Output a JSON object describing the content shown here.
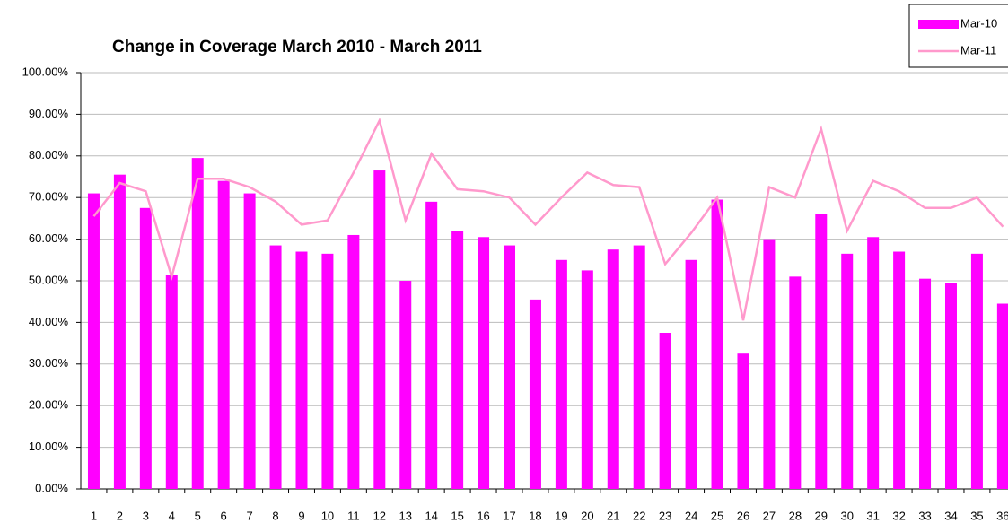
{
  "chart_data": {
    "type": "bar+line",
    "title": "Change in Coverage March 2010 - March 2011",
    "categories": [
      "1",
      "2",
      "3",
      "4",
      "5",
      "6",
      "7",
      "8",
      "9",
      "10",
      "11",
      "12",
      "13",
      "14",
      "15",
      "16",
      "17",
      "18",
      "19",
      "20",
      "21",
      "22",
      "23",
      "24",
      "25",
      "26",
      "27",
      "28",
      "29",
      "30",
      "31",
      "32",
      "33",
      "34",
      "35",
      "36"
    ],
    "series": [
      {
        "name": "Mar-10",
        "type": "bar",
        "color": "#ff00ff",
        "values": [
          71,
          75.5,
          67.5,
          51.5,
          79.5,
          74,
          71,
          58.5,
          57,
          56.5,
          61,
          76.5,
          50,
          69,
          62,
          60.5,
          58.5,
          45.5,
          55,
          52.5,
          57.5,
          58.5,
          37.5,
          55,
          69.5,
          32.5,
          60,
          51,
          66,
          56.5,
          60.5,
          57,
          50.5,
          49.5,
          56.5,
          44.5
        ]
      },
      {
        "name": "Mar-11",
        "type": "line",
        "color": "#ff99cc",
        "values": [
          65.5,
          73.5,
          71.5,
          51,
          74.5,
          74.5,
          72.5,
          69,
          63.5,
          64.5,
          76,
          88.5,
          64.5,
          80.5,
          72,
          71.5,
          70,
          63.5,
          70,
          76,
          73,
          72.5,
          54,
          61.5,
          70,
          40.5,
          72.5,
          70,
          86.5,
          62,
          74,
          71.5,
          67.5,
          67.5,
          70,
          63
        ]
      }
    ],
    "ylim": [
      0,
      100
    ],
    "yticks": [
      {
        "value": 0,
        "label": "0.00%"
      },
      {
        "value": 10,
        "label": "10.00%"
      },
      {
        "value": 20,
        "label": "20.00%"
      },
      {
        "value": 30,
        "label": "30.00%"
      },
      {
        "value": 40,
        "label": "40.00%"
      },
      {
        "value": 50,
        "label": "50.00%"
      },
      {
        "value": 60,
        "label": "60.00%"
      },
      {
        "value": 70,
        "label": "70.00%"
      },
      {
        "value": 80,
        "label": "80.00%"
      },
      {
        "value": 90,
        "label": "90.00%"
      },
      {
        "value": 100,
        "label": "100.00%"
      }
    ],
    "grid": true,
    "legend": "top-right"
  }
}
